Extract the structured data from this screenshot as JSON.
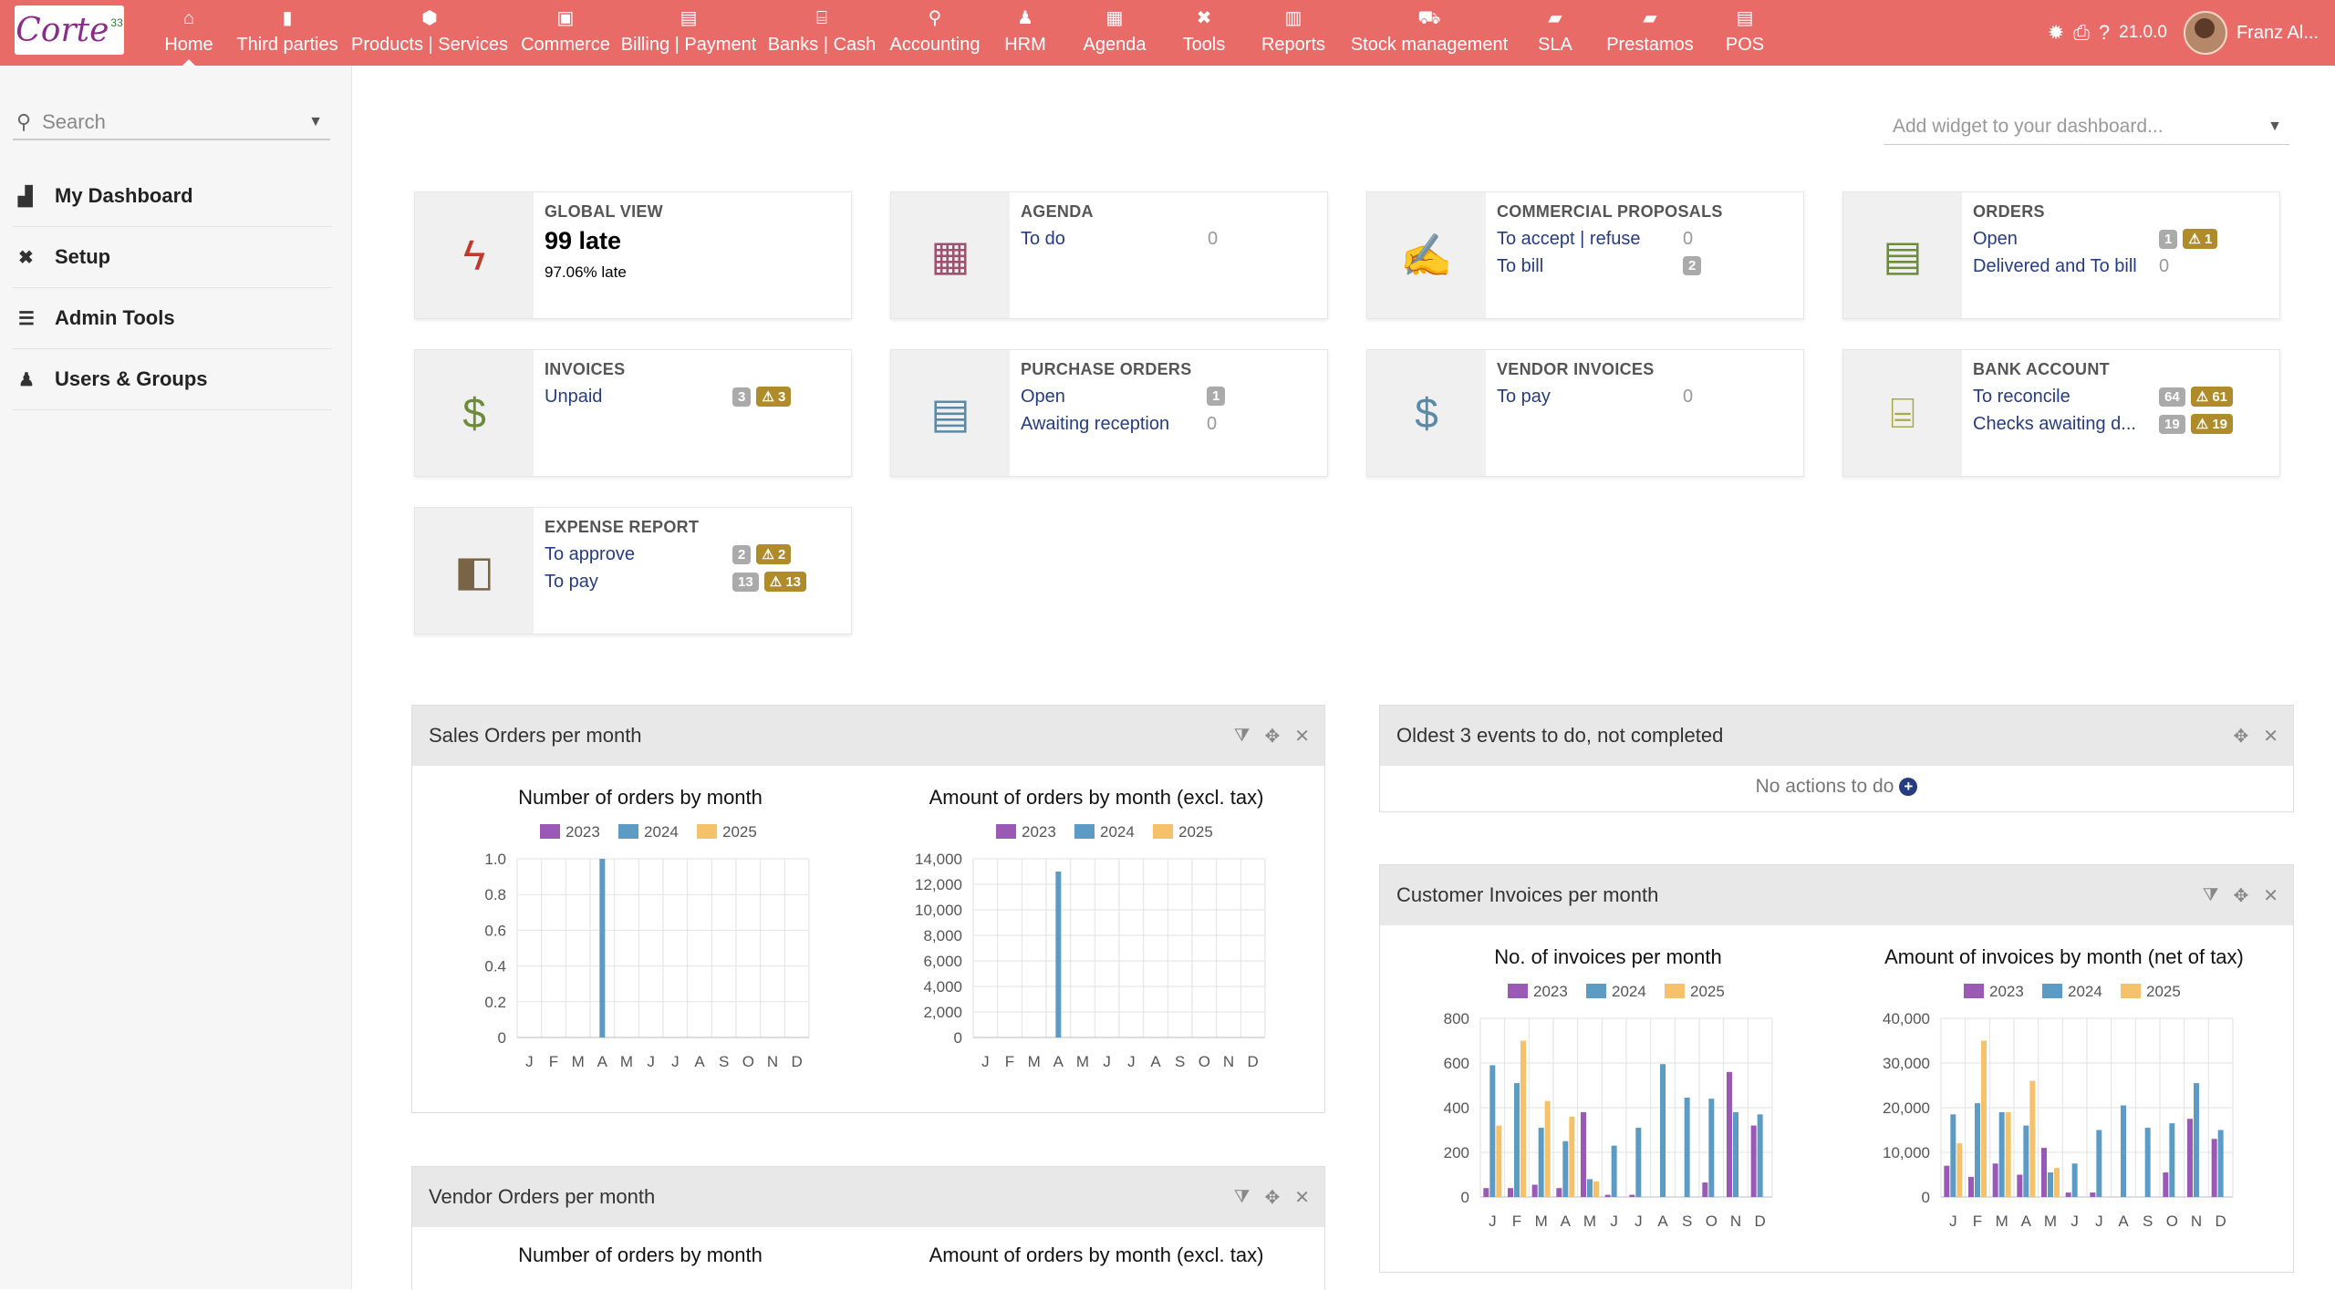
{
  "app": {
    "logo_text": "Corte",
    "logo_sup": "33"
  },
  "menu": [
    {
      "label": "Home",
      "icon": "home-icon",
      "glyph": "⌂",
      "width": 94,
      "active": true
    },
    {
      "label": "Third parties",
      "icon": "building-icon",
      "glyph": "▮",
      "width": 122
    },
    {
      "label": "Products | Services",
      "icon": "cube-icon",
      "glyph": "⬢",
      "width": 190
    },
    {
      "label": "Commerce",
      "icon": "briefcase-icon",
      "glyph": "▣",
      "width": 108
    },
    {
      "label": "Billing | Payment",
      "icon": "file-invoice-icon",
      "glyph": "▤",
      "width": 162
    },
    {
      "label": "Banks | Cash",
      "icon": "bank-icon",
      "glyph": "⌸",
      "width": 130
    },
    {
      "label": "Accounting",
      "icon": "search-dollar-icon",
      "glyph": "⚲",
      "width": 118
    },
    {
      "label": "HRM",
      "icon": "user-tie-icon",
      "glyph": "♟",
      "width": 80
    },
    {
      "label": "Agenda",
      "icon": "calendar-icon",
      "glyph": "▦",
      "width": 116
    },
    {
      "label": "Tools",
      "icon": "tools-icon",
      "glyph": "✖",
      "width": 80
    },
    {
      "label": "Reports",
      "icon": "reports-icon",
      "glyph": "▥",
      "width": 116
    },
    {
      "label": "Stock management",
      "icon": "stock-icon",
      "glyph": "⛟",
      "width": 182
    },
    {
      "label": "SLA",
      "icon": "sla-icon",
      "glyph": "▰",
      "width": 94
    },
    {
      "label": "Prestamos",
      "icon": "prestamos-icon",
      "glyph": "▰",
      "width": 114
    },
    {
      "label": "POS",
      "icon": "pos-icon",
      "glyph": "▤",
      "width": 94
    }
  ],
  "topright": {
    "version": "21.0.0",
    "username": "Franz Al..."
  },
  "sidebar": {
    "search_placeholder": "Search",
    "items": [
      {
        "label": "My Dashboard",
        "icon": "chart-area-icon",
        "glyph": "▟"
      },
      {
        "label": "Setup",
        "icon": "tools-icon",
        "glyph": "✖"
      },
      {
        "label": "Admin Tools",
        "icon": "server-icon",
        "glyph": "☰"
      },
      {
        "label": "Users & Groups",
        "icon": "user-icon",
        "glyph": "♟"
      }
    ]
  },
  "dashboard": {
    "widget_placeholder": "Add widget to your dashboard...",
    "global_view": {
      "title": "GLOBAL VIEW",
      "big": "99 late",
      "small": "97.06% late"
    },
    "agenda": {
      "title": "AGENDA",
      "rows": [
        {
          "label": "To do",
          "count": "0"
        }
      ]
    },
    "proposals": {
      "title": "COMMERCIAL PROPOSALS",
      "rows": [
        {
          "label": "To accept | refuse",
          "count": "0"
        },
        {
          "label": "To bill",
          "badge": "2"
        }
      ]
    },
    "orders": {
      "title": "ORDERS",
      "rows": [
        {
          "label": "Open",
          "badge": "1",
          "warn": "1"
        },
        {
          "label": "Delivered and To bill",
          "count": "0"
        }
      ]
    },
    "invoices": {
      "title": "INVOICES",
      "rows": [
        {
          "label": "Unpaid",
          "badge": "3",
          "warn": "3"
        }
      ]
    },
    "purchase_orders": {
      "title": "PURCHASE ORDERS",
      "rows": [
        {
          "label": "Open",
          "badge": "1"
        },
        {
          "label": "Awaiting reception",
          "count": "0"
        }
      ]
    },
    "vendor_invoices": {
      "title": "VENDOR INVOICES",
      "rows": [
        {
          "label": "To pay",
          "count": "0"
        }
      ]
    },
    "bank_account": {
      "title": "BANK ACCOUNT",
      "rows": [
        {
          "label": "To reconcile",
          "badge": "64",
          "warn": "61"
        },
        {
          "label": "Checks awaiting d...",
          "badge": "19",
          "warn": "19"
        }
      ]
    },
    "expense_report": {
      "title": "EXPENSE REPORT",
      "rows": [
        {
          "label": "To approve",
          "badge": "2",
          "warn": "2"
        },
        {
          "label": "To pay",
          "badge": "13",
          "warn": "13"
        }
      ]
    }
  },
  "panels": {
    "sales_orders": {
      "title": "Sales Orders per month"
    },
    "oldest_events": {
      "title": "Oldest 3 events to do, not completed",
      "empty_text": "No actions to do"
    },
    "customer_invoices": {
      "title": "Customer Invoices per month"
    },
    "vendor_orders": {
      "title": "Vendor Orders per month",
      "chart_titles": [
        "Number of orders by month",
        "Amount of orders by month (excl. tax)"
      ]
    }
  },
  "colors": {
    "2023": "#9b59b6",
    "2024": "#5b9bc4",
    "2025": "#f5c26b",
    "topbar": "#e96b67",
    "link": "#263c81"
  },
  "chart_data": [
    {
      "type": "bar",
      "title": "Number of orders by month",
      "categories": [
        "J",
        "F",
        "M",
        "A",
        "M",
        "J",
        "J",
        "A",
        "S",
        "O",
        "N",
        "D"
      ],
      "series": [
        {
          "name": "2023",
          "values": [
            0,
            0,
            0,
            0,
            0,
            0,
            0,
            0,
            0,
            0,
            0,
            0
          ]
        },
        {
          "name": "2024",
          "values": [
            0,
            0,
            0,
            1,
            0,
            0,
            0,
            0,
            0,
            0,
            0,
            0
          ]
        },
        {
          "name": "2025",
          "values": [
            0,
            0,
            0,
            0,
            0,
            0,
            0,
            0,
            0,
            0,
            0,
            0
          ]
        }
      ],
      "ylim": [
        0,
        1
      ],
      "yticks": [
        "0",
        "0.2",
        "0.4",
        "0.6",
        "0.8",
        "1.0"
      ],
      "legend_position": "top"
    },
    {
      "type": "bar",
      "title": "Amount of orders by month (excl. tax)",
      "categories": [
        "J",
        "F",
        "M",
        "A",
        "M",
        "J",
        "J",
        "A",
        "S",
        "O",
        "N",
        "D"
      ],
      "series": [
        {
          "name": "2023",
          "values": [
            0,
            0,
            0,
            0,
            0,
            0,
            0,
            0,
            0,
            0,
            0,
            0
          ]
        },
        {
          "name": "2024",
          "values": [
            0,
            0,
            0,
            13000,
            0,
            0,
            0,
            0,
            0,
            0,
            0,
            0
          ]
        },
        {
          "name": "2025",
          "values": [
            0,
            0,
            0,
            0,
            0,
            0,
            0,
            0,
            0,
            0,
            0,
            0
          ]
        }
      ],
      "ylim": [
        0,
        14000
      ],
      "yticks": [
        "0",
        "2,000",
        "4,000",
        "6,000",
        "8,000",
        "10,000",
        "12,000",
        "14,000"
      ],
      "legend_position": "top"
    },
    {
      "type": "bar",
      "title": "No. of invoices per month",
      "categories": [
        "J",
        "F",
        "M",
        "A",
        "M",
        "J",
        "J",
        "A",
        "S",
        "O",
        "N",
        "D"
      ],
      "series": [
        {
          "name": "2023",
          "values": [
            40,
            40,
            55,
            40,
            380,
            10,
            10,
            0,
            0,
            65,
            560,
            320
          ]
        },
        {
          "name": "2024",
          "values": [
            590,
            510,
            310,
            250,
            80,
            230,
            310,
            595,
            445,
            440,
            380,
            370
          ]
        },
        {
          "name": "2025",
          "values": [
            320,
            700,
            430,
            360,
            70,
            0,
            0,
            0,
            0,
            0,
            0,
            0
          ]
        }
      ],
      "ylim": [
        0,
        800
      ],
      "yticks": [
        "0",
        "200",
        "400",
        "600",
        "800"
      ],
      "legend_position": "top"
    },
    {
      "type": "bar",
      "title": "Amount of invoices by month (net of tax)",
      "categories": [
        "J",
        "F",
        "M",
        "A",
        "M",
        "J",
        "J",
        "A",
        "S",
        "O",
        "N",
        "D"
      ],
      "series": [
        {
          "name": "2023",
          "values": [
            7000,
            4500,
            7500,
            5000,
            11000,
            1000,
            1000,
            0,
            0,
            5500,
            17500,
            13000
          ]
        },
        {
          "name": "2024",
          "values": [
            18500,
            21000,
            19000,
            16000,
            5500,
            7500,
            15000,
            20500,
            15500,
            16500,
            25500,
            15000
          ]
        },
        {
          "name": "2025",
          "values": [
            12000,
            35000,
            19000,
            26000,
            6500,
            0,
            0,
            0,
            0,
            0,
            0,
            0
          ]
        }
      ],
      "ylim": [
        0,
        40000
      ],
      "yticks": [
        "0",
        "10,000",
        "20,000",
        "30,000",
        "40,000"
      ],
      "legend_position": "top"
    }
  ]
}
